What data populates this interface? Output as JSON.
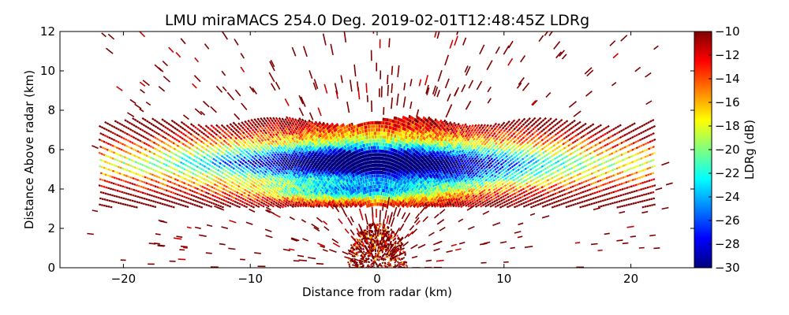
{
  "chart_data": {
    "type": "heatmap",
    "title": "LMU miraMACS 254.0 Deg. 2019-02-01T12:48:45Z  LDRg",
    "xlabel": "Distance from radar (km)",
    "ylabel": "Distance Above radar  (km)",
    "xlim": [
      -25,
      25
    ],
    "ylim": [
      0,
      12
    ],
    "xticks": [
      -20,
      -10,
      0,
      10,
      20
    ],
    "xtick_labels": [
      "−20",
      "−10",
      "0",
      "10",
      "20"
    ],
    "yticks": [
      0,
      2,
      4,
      6,
      8,
      10,
      12
    ],
    "ytick_labels": [
      "0",
      "2",
      "4",
      "6",
      "8",
      "10",
      "12"
    ],
    "colorbar": {
      "label": "LDRg (dB)",
      "range": [
        -30,
        -10
      ],
      "ticks": [
        -10,
        -12,
        -14,
        -16,
        -18,
        -20,
        -22,
        -24,
        -26,
        -28,
        -30
      ],
      "tick_labels": [
        "−10",
        "−12",
        "−14",
        "−16",
        "−18",
        "−20",
        "−22",
        "−24",
        "−26",
        "−28",
        "−30"
      ],
      "colormap": "jet",
      "colormap_stops": [
        "#00007f",
        "#0000ff",
        "#007fff",
        "#00ffff",
        "#7fff7f",
        "#ffff00",
        "#ff7f00",
        "#ff0000",
        "#7f0000"
      ]
    },
    "scan": {
      "elevation_deg": 254.0,
      "max_range_km": 22,
      "description_values": {
        "cloud_layer_km": [
          3.2,
          7.4
        ],
        "low_ldr_region_db": -29,
        "edge_ldr_db": -12
      }
    }
  }
}
